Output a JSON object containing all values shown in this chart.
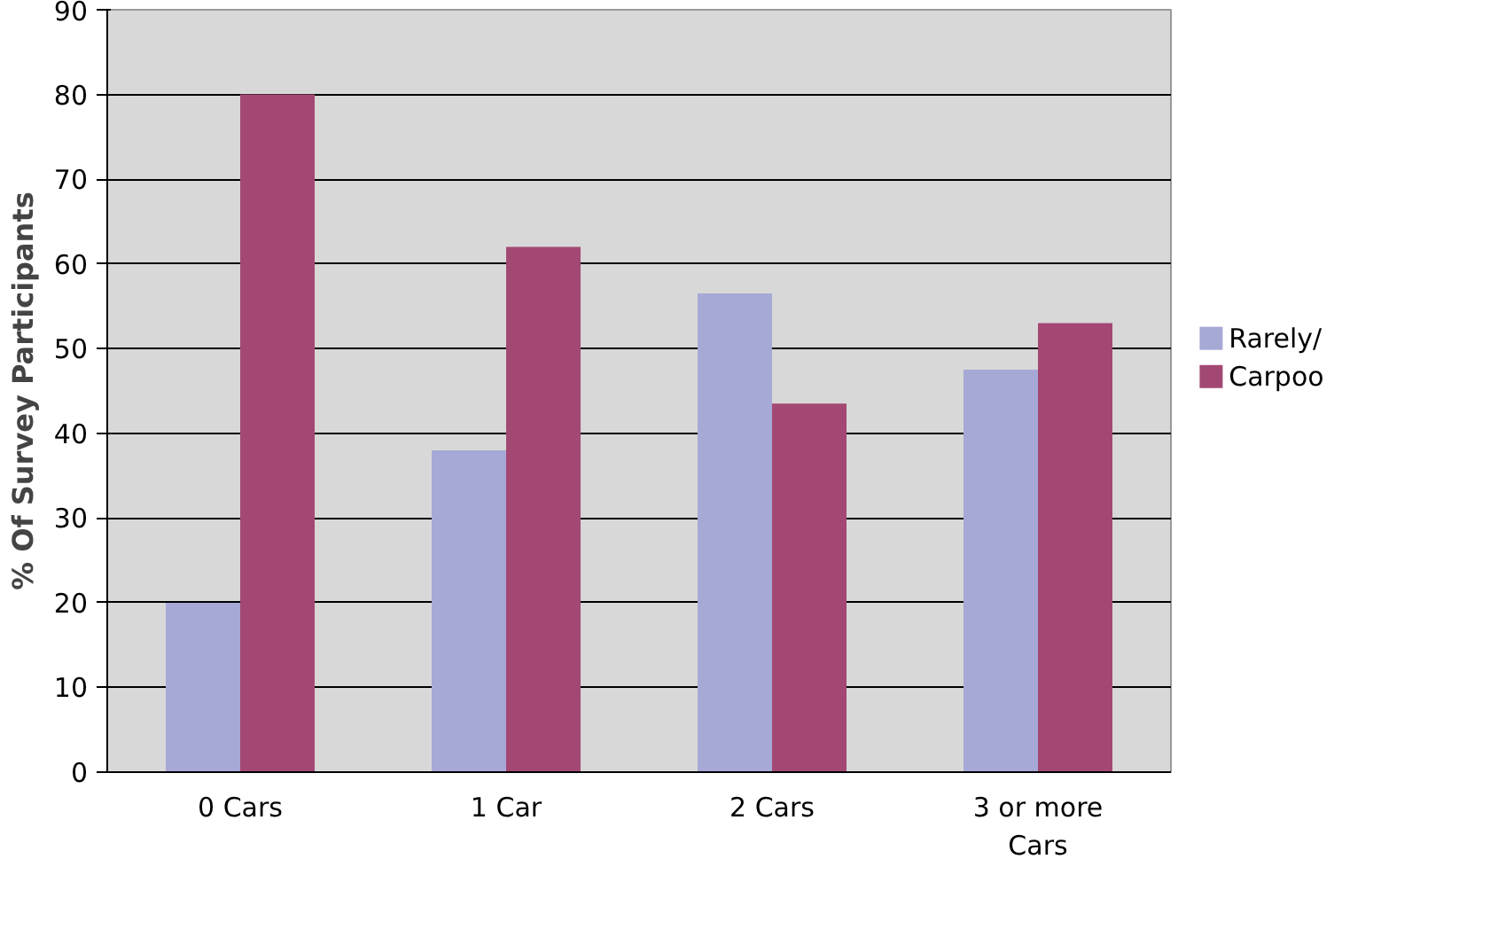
{
  "chart_data": {
    "type": "bar",
    "ylabel": "% Of Survey Participants",
    "categories": [
      "0 Cars",
      "1 Car",
      "2 Cars",
      "3 or more Cars"
    ],
    "series": [
      {
        "name": "Rarely/",
        "color": "#a6a8d6",
        "values": [
          20,
          38,
          56.5,
          47.5
        ]
      },
      {
        "name": "Carpoo",
        "color": "#a34873",
        "values": [
          80,
          62,
          43.5,
          53
        ]
      }
    ],
    "ylim": [
      0,
      90
    ],
    "yticks": [
      0,
      10,
      20,
      30,
      40,
      50,
      60,
      70,
      80,
      90
    ],
    "grid": "y",
    "legend": "right"
  }
}
